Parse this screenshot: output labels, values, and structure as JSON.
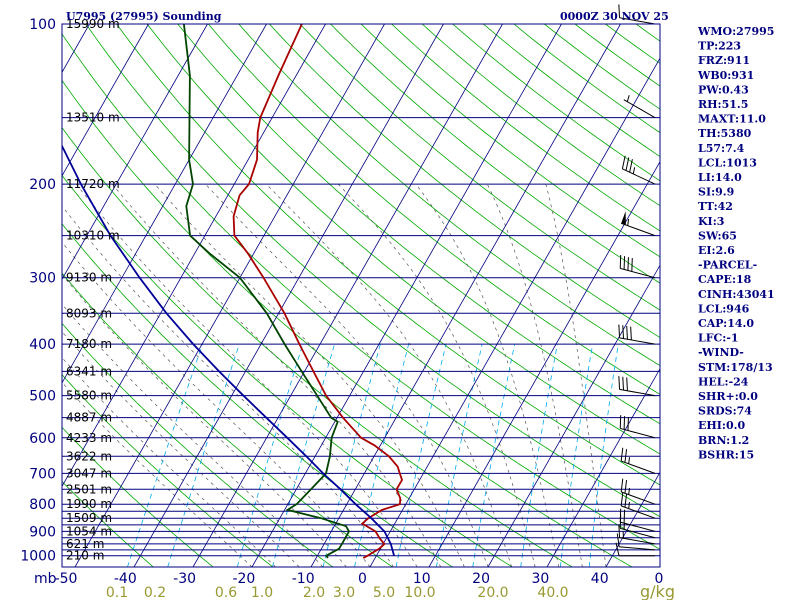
{
  "chart_data": {
    "type": "line",
    "title": "U7995 (27995) Sounding",
    "valid_time": "0000Z 30 NOV 25",
    "xlabel_units": "mb",
    "mixing_ratio_units": "g/kg",
    "x_temperature_ticks": [
      -50,
      -40,
      -30,
      -20,
      -10,
      0,
      10,
      20,
      30,
      40,
      0
    ],
    "mixing_ratio_ticks": [
      "0.1",
      "0.2",
      "0.6",
      "1.0",
      "2.0",
      "3.0",
      "5.0",
      "10.0",
      "20.0",
      "40.0"
    ],
    "pressure_ticks": [
      {
        "p": 100,
        "label": "100"
      },
      {
        "p": 200,
        "label": "200"
      },
      {
        "p": 300,
        "label": "300"
      },
      {
        "p": 400,
        "label": "400"
      },
      {
        "p": 500,
        "label": "500"
      },
      {
        "p": 600,
        "label": "600"
      },
      {
        "p": 700,
        "label": "700"
      },
      {
        "p": 800,
        "label": "800"
      },
      {
        "p": 900,
        "label": "900"
      },
      {
        "p": 1000,
        "label": "1000"
      }
    ],
    "height_labels": [
      {
        "p": 100,
        "label": "15990 m"
      },
      {
        "p": 150,
        "label": "13510 m"
      },
      {
        "p": 200,
        "label": "11720 m"
      },
      {
        "p": 250,
        "label": "10310 m"
      },
      {
        "p": 300,
        "label": "9130 m"
      },
      {
        "p": 350,
        "label": "8093 m"
      },
      {
        "p": 400,
        "label": "7180 m"
      },
      {
        "p": 450,
        "label": "6341 m"
      },
      {
        "p": 500,
        "label": "5580 m"
      },
      {
        "p": 550,
        "label": "4887 m"
      },
      {
        "p": 600,
        "label": "4233 m"
      },
      {
        "p": 650,
        "label": "3622 m"
      },
      {
        "p": 700,
        "label": "3047 m"
      },
      {
        "p": 750,
        "label": "2501 m"
      },
      {
        "p": 800,
        "label": "1990 m"
      },
      {
        "p": 850,
        "label": "1509 m"
      },
      {
        "p": 900,
        "label": "1054 m"
      },
      {
        "p": 950,
        "label": "621 m"
      },
      {
        "p": 1000,
        "label": "210 m"
      }
    ],
    "series": [
      {
        "name": "Temperature",
        "color": "#aa0000",
        "points": [
          [
            1010,
            -2.0
          ],
          [
            1000,
            -1.5
          ],
          [
            970,
            -0.2
          ],
          [
            950,
            0.2
          ],
          [
            930,
            -1.0
          ],
          [
            900,
            -2.5
          ],
          [
            870,
            -5.5
          ],
          [
            850,
            -5.0
          ],
          [
            820,
            -3.5
          ],
          [
            800,
            -1.0
          ],
          [
            780,
            -1.5
          ],
          [
            750,
            -3.0
          ],
          [
            720,
            -3.0
          ],
          [
            700,
            -4.0
          ],
          [
            680,
            -5.0
          ],
          [
            650,
            -7.5
          ],
          [
            620,
            -11.0
          ],
          [
            600,
            -14.0
          ],
          [
            550,
            -19.0
          ],
          [
            500,
            -24.0
          ],
          [
            450,
            -28.5
          ],
          [
            400,
            -33.5
          ],
          [
            350,
            -39.0
          ],
          [
            300,
            -46.0
          ],
          [
            270,
            -51.0
          ],
          [
            250,
            -55.0
          ],
          [
            230,
            -57.0
          ],
          [
            210,
            -58.0
          ],
          [
            200,
            -57.5
          ],
          [
            180,
            -58.5
          ],
          [
            160,
            -61.0
          ],
          [
            150,
            -62.0
          ],
          [
            125,
            -63.0
          ],
          [
            100,
            -64.0
          ]
        ]
      },
      {
        "name": "Dewpoint",
        "color": "#004400",
        "points": [
          [
            1010,
            -8.0
          ],
          [
            1000,
            -8.5
          ],
          [
            970,
            -7.0
          ],
          [
            950,
            -7.0
          ],
          [
            900,
            -7.0
          ],
          [
            880,
            -8.0
          ],
          [
            850,
            -13.0
          ],
          [
            820,
            -19.5
          ],
          [
            800,
            -18.5
          ],
          [
            750,
            -17.5
          ],
          [
            700,
            -16.5
          ],
          [
            650,
            -17.5
          ],
          [
            600,
            -19.0
          ],
          [
            560,
            -19.5
          ],
          [
            550,
            -21.0
          ],
          [
            500,
            -25.5
          ],
          [
            450,
            -30.5
          ],
          [
            400,
            -36.0
          ],
          [
            350,
            -42.0
          ],
          [
            300,
            -50.0
          ],
          [
            270,
            -57.5
          ],
          [
            250,
            -62.5
          ],
          [
            220,
            -66.0
          ],
          [
            200,
            -67.0
          ],
          [
            180,
            -70.0
          ],
          [
            150,
            -74.0
          ],
          [
            125,
            -78.0
          ],
          [
            100,
            -84.0
          ]
        ]
      },
      {
        "name": "Parcel",
        "color": "#000099",
        "points": [
          [
            1000,
            3.0
          ],
          [
            950,
            1.3
          ],
          [
            900,
            -1.0
          ],
          [
            850,
            -4.5
          ],
          [
            800,
            -8.5
          ],
          [
            750,
            -12.5
          ],
          [
            700,
            -17.0
          ],
          [
            650,
            -21.5
          ],
          [
            600,
            -26.5
          ],
          [
            550,
            -32.0
          ],
          [
            500,
            -38.0
          ],
          [
            450,
            -44.5
          ],
          [
            400,
            -51.5
          ],
          [
            350,
            -59.0
          ],
          [
            300,
            -67.0
          ],
          [
            250,
            -76.0
          ],
          [
            200,
            -86.0
          ],
          [
            150,
            -98.0
          ],
          [
            115,
            -106.0
          ]
        ]
      }
    ],
    "wind_barbs": [
      {
        "p": 1000,
        "dir": 270,
        "spd": 10
      },
      {
        "p": 975,
        "dir": 275,
        "spd": 10
      },
      {
        "p": 950,
        "dir": 280,
        "spd": 15
      },
      {
        "p": 925,
        "dir": 285,
        "spd": 15
      },
      {
        "p": 900,
        "dir": 285,
        "spd": 20
      },
      {
        "p": 850,
        "dir": 290,
        "spd": 25
      },
      {
        "p": 800,
        "dir": 290,
        "spd": 25
      },
      {
        "p": 700,
        "dir": 290,
        "spd": 25
      },
      {
        "p": 600,
        "dir": 285,
        "spd": 30
      },
      {
        "p": 500,
        "dir": 280,
        "spd": 30
      },
      {
        "p": 400,
        "dir": 280,
        "spd": 40
      },
      {
        "p": 300,
        "dir": 285,
        "spd": 40
      },
      {
        "p": 250,
        "dir": 290,
        "spd": 55
      },
      {
        "p": 200,
        "dir": 295,
        "spd": 35
      },
      {
        "p": 150,
        "dir": 300,
        "spd": 5
      },
      {
        "p": 100,
        "dir": 280,
        "spd": 10
      }
    ],
    "indices": [
      "WMO:27995",
      "TP:223",
      "FRZ:911",
      "WB0:931",
      "PW:0.43",
      "RH:51.5",
      "MAXT:11.0",
      "TH:5380",
      "L57:7.4",
      "LCL:1013",
      "LI:14.0",
      "SI:9.9",
      "TT:42",
      "KI:3",
      "SW:65",
      "EI:2.6",
      "-PARCEL-",
      "CAPE:18",
      "CINH:43041",
      "LCL:946",
      "CAP:14.0",
      "LFC:-1",
      "-WIND-",
      "STM:178/13",
      "HEL:-24",
      "SHR+:0.0",
      "SRDS:74",
      "EHI:0.0",
      "BRN:1.2",
      "BSHR:15"
    ],
    "colors": {
      "isobar": "#000080",
      "isotherm": "#000080",
      "dry_adiabat": "#00aa00",
      "moist_adiabat": "#555555",
      "mixing_ratio": "#00aaee",
      "label": "#000080",
      "mixing_label": "#999933"
    }
  }
}
